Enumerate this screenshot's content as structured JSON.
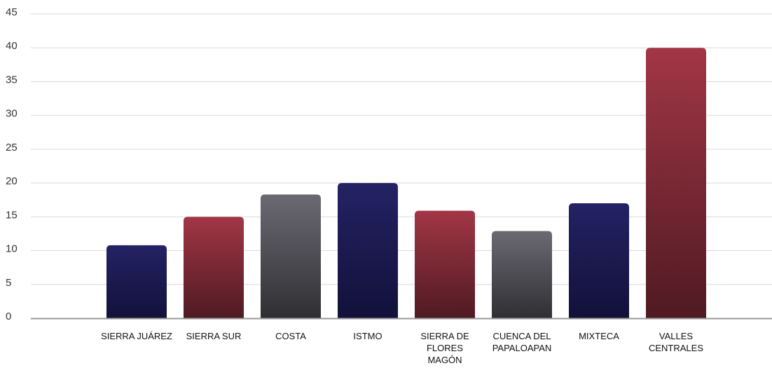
{
  "chart_data": {
    "type": "bar",
    "title": "",
    "xlabel": "",
    "ylabel": "",
    "categories": [
      [
        "SIERRA JUÁREZ"
      ],
      [
        "SIERRA SUR"
      ],
      [
        "COSTA"
      ],
      [
        "ISTMO"
      ],
      [
        "SIERRA DE",
        "FLORES",
        "MAGÓN"
      ],
      [
        "CUENCA DEL",
        "PAPALOAPAN"
      ],
      [
        "MIXTECA"
      ],
      [
        "VALLES",
        "CENTRALES"
      ]
    ],
    "values": [
      10.8,
      15,
      18.3,
      20,
      15.9,
      12.9,
      17,
      40
    ],
    "ylim": [
      0,
      45
    ],
    "yticks": [
      "0",
      "5",
      "10",
      "15",
      "20",
      "25",
      "30",
      "35",
      "40",
      "45"
    ],
    "bar_styles": [
      "navy",
      "crimson",
      "gray",
      "navy",
      "crimson",
      "gray",
      "navy",
      "crimson"
    ],
    "grid": true,
    "legend": "none"
  },
  "colors": {
    "navy": [
      "#242263",
      "#12113a"
    ],
    "crimson": [
      "#a23646",
      "#4f1a22"
    ],
    "gray": [
      "#6b6a73",
      "#2f2f33"
    ],
    "grid": "#d9d9d9",
    "axis": "#999999"
  }
}
